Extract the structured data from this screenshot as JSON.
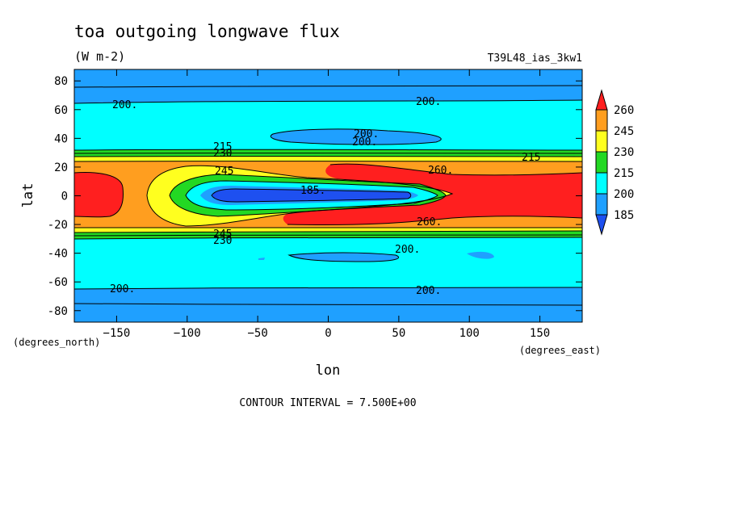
{
  "chart_data": {
    "type": "heatmap",
    "title": "toa outgoing longwave flux",
    "units": "(W m-2)",
    "run_label": "T39L48_ias_3kw1",
    "xlabel": "lon",
    "ylabel": "lat",
    "x_units": "(degrees_east)",
    "y_units": "(degrees_north)",
    "xlim": [
      -180,
      180
    ],
    "ylim": [
      -88,
      88
    ],
    "x_ticks": [
      "-150",
      "-100",
      "-50",
      "0",
      "50",
      "100",
      "150"
    ],
    "y_ticks": [
      "80",
      "60",
      "40",
      "20",
      "0",
      "-20",
      "-40",
      "-60",
      "-80"
    ],
    "colorbar": {
      "levels": [
        "260",
        "245",
        "230",
        "215",
        "200",
        "185"
      ],
      "colors": [
        "#ff1f1f",
        "#ff9e1f",
        "#ffff1f",
        "#23d823",
        "#00ffff",
        "#1fa0ff",
        "#1e50f0"
      ]
    },
    "contour_labels": [
      "200.",
      "215",
      "230",
      "245",
      "260.",
      "185.",
      "200.",
      "200.",
      "200.",
      "245",
      "230",
      "215",
      "260.",
      "200.",
      "200.",
      "200."
    ],
    "footer": "CONTOUR INTERVAL = 7.500E+00",
    "grid": false
  }
}
